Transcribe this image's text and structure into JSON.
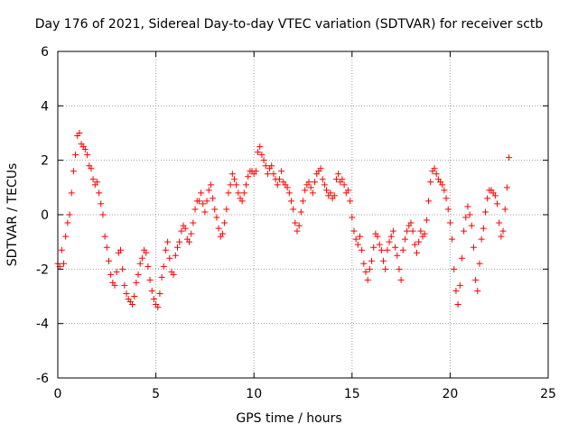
{
  "chart_data": {
    "type": "scatter",
    "title": "Day 176 of 2021, Sidereal Day-to-day VTEC variation (SDTVAR) for receiver sctb",
    "xlabel": "GPS time / hours",
    "ylabel": "SDTVAR / TECUs",
    "xlim": [
      0,
      25
    ],
    "ylim": [
      -6,
      6
    ],
    "x_ticks": [
      0,
      5,
      10,
      15,
      20,
      25
    ],
    "y_ticks": [
      -6,
      -4,
      -2,
      0,
      2,
      4,
      6
    ],
    "grid": true,
    "marker": "+",
    "color": "#ff0000",
    "series": [
      {
        "name": "sctb",
        "x": [
          0.0,
          0.1,
          0.2,
          0.3,
          0.4,
          0.5,
          0.6,
          0.7,
          0.8,
          0.9,
          1.0,
          1.1,
          1.2,
          1.3,
          1.4,
          1.5,
          1.6,
          1.7,
          1.8,
          1.9,
          2.0,
          2.1,
          2.2,
          2.3,
          2.4,
          2.5,
          2.6,
          2.7,
          2.8,
          2.9,
          3.0,
          3.1,
          3.2,
          3.3,
          3.4,
          3.5,
          3.6,
          3.7,
          3.8,
          3.9,
          4.0,
          4.1,
          4.2,
          4.3,
          4.4,
          4.5,
          4.6,
          4.7,
          4.8,
          4.9,
          5.0,
          5.1,
          5.2,
          5.3,
          5.4,
          5.5,
          5.6,
          5.7,
          5.8,
          5.9,
          6.0,
          6.1,
          6.2,
          6.3,
          6.4,
          6.5,
          6.6,
          6.7,
          6.8,
          6.9,
          7.0,
          7.1,
          7.2,
          7.3,
          7.4,
          7.5,
          7.6,
          7.7,
          7.8,
          7.9,
          8.0,
          8.1,
          8.2,
          8.3,
          8.4,
          8.5,
          8.6,
          8.7,
          8.8,
          8.9,
          9.0,
          9.1,
          9.2,
          9.3,
          9.4,
          9.5,
          9.6,
          9.7,
          9.8,
          9.9,
          10.0,
          10.1,
          10.2,
          10.3,
          10.4,
          10.5,
          10.6,
          10.7,
          10.8,
          10.9,
          11.0,
          11.1,
          11.2,
          11.3,
          11.4,
          11.5,
          11.6,
          11.7,
          11.8,
          11.9,
          12.0,
          12.1,
          12.2,
          12.3,
          12.4,
          12.5,
          12.6,
          12.7,
          12.8,
          12.9,
          13.0,
          13.1,
          13.2,
          13.3,
          13.4,
          13.5,
          13.6,
          13.7,
          13.8,
          13.9,
          14.0,
          14.1,
          14.2,
          14.3,
          14.4,
          14.5,
          14.6,
          14.7,
          14.8,
          14.9,
          15.0,
          15.1,
          15.2,
          15.3,
          15.4,
          15.5,
          15.6,
          15.7,
          15.8,
          15.9,
          16.0,
          16.1,
          16.2,
          16.3,
          16.4,
          16.5,
          16.6,
          16.7,
          16.8,
          16.9,
          17.0,
          17.1,
          17.2,
          17.3,
          17.4,
          17.5,
          17.6,
          17.7,
          17.8,
          17.9,
          18.0,
          18.1,
          18.2,
          18.3,
          18.4,
          18.5,
          18.6,
          18.7,
          18.8,
          18.9,
          19.0,
          19.1,
          19.2,
          19.3,
          19.4,
          19.5,
          19.6,
          19.7,
          19.8,
          19.9,
          20.0,
          20.1,
          20.2,
          20.3,
          20.4,
          20.5,
          20.6,
          20.7,
          20.8,
          20.9,
          21.0,
          21.1,
          21.2,
          21.3,
          21.4,
          21.5,
          21.6,
          21.7,
          21.8,
          21.9,
          22.0,
          22.1,
          22.2,
          22.3,
          22.4,
          22.5,
          22.6,
          22.7,
          22.8,
          22.9,
          23.0
        ],
        "y": [
          -1.8,
          -1.9,
          -1.3,
          -1.8,
          -0.8,
          -0.3,
          0.0,
          0.8,
          1.6,
          2.2,
          2.9,
          3.0,
          2.6,
          2.5,
          2.4,
          2.2,
          1.8,
          1.7,
          1.3,
          1.1,
          1.2,
          0.8,
          0.4,
          0.0,
          -0.8,
          -1.2,
          -1.7,
          -2.2,
          -2.5,
          -2.6,
          -2.1,
          -1.4,
          -1.3,
          -2.0,
          -2.6,
          -2.9,
          -3.1,
          -3.2,
          -3.3,
          -3.0,
          -2.5,
          -2.2,
          -1.8,
          -1.6,
          -1.3,
          -1.4,
          -1.9,
          -2.4,
          -2.8,
          -3.1,
          -3.3,
          -3.4,
          -2.9,
          -2.3,
          -1.9,
          -1.3,
          -1.0,
          -1.6,
          -2.1,
          -2.2,
          -1.5,
          -1.2,
          -1.0,
          -0.6,
          -0.4,
          -0.5,
          -0.9,
          -1.0,
          -0.7,
          -0.3,
          0.2,
          0.5,
          0.5,
          0.8,
          0.4,
          0.1,
          0.5,
          0.9,
          1.1,
          0.6,
          0.2,
          -0.1,
          -0.5,
          -0.8,
          -0.7,
          -0.3,
          0.2,
          0.8,
          1.1,
          1.5,
          1.3,
          1.1,
          0.8,
          0.6,
          0.5,
          0.8,
          1.1,
          1.4,
          1.6,
          1.6,
          1.5,
          1.6,
          2.3,
          2.5,
          2.2,
          2.0,
          1.8,
          1.5,
          1.7,
          1.8,
          1.5,
          1.3,
          1.1,
          1.3,
          1.6,
          1.2,
          1.1,
          1.0,
          0.8,
          0.5,
          0.2,
          -0.3,
          -0.6,
          -0.4,
          0.1,
          0.5,
          0.9,
          1.1,
          1.2,
          1.0,
          0.8,
          1.2,
          1.5,
          1.6,
          1.7,
          1.3,
          1.1,
          0.9,
          0.7,
          0.8,
          0.6,
          0.7,
          1.3,
          1.5,
          1.2,
          1.3,
          1.1,
          0.8,
          0.9,
          0.5,
          -0.1,
          -0.6,
          -0.9,
          -1.1,
          -0.8,
          -1.3,
          -1.8,
          -2.1,
          -2.4,
          -2.0,
          -1.7,
          -1.2,
          -0.7,
          -0.8,
          -1.1,
          -1.3,
          -1.7,
          -2.0,
          -1.3,
          -1.0,
          -0.8,
          -0.6,
          -1.2,
          -1.5,
          -2.0,
          -2.4,
          -1.3,
          -0.9,
          -0.6,
          -0.4,
          -0.3,
          -0.6,
          -1.1,
          -1.4,
          -1.0,
          -0.6,
          -0.8,
          -0.7,
          -0.2,
          0.5,
          1.2,
          1.6,
          1.7,
          1.5,
          1.3,
          1.2,
          1.1,
          0.9,
          0.6,
          0.2,
          -0.3,
          -0.9,
          -2.0,
          -2.8,
          -3.3,
          -2.6,
          -1.6,
          -0.6,
          -0.1,
          0.3,
          0.0,
          -0.4,
          -1.2,
          -2.4,
          -2.8,
          -1.8,
          -0.9,
          -0.5,
          0.1,
          0.6,
          0.9,
          0.9,
          0.8,
          0.7,
          0.4,
          -0.3,
          -0.8,
          -0.6,
          0.2,
          1.0,
          2.1
        ]
      }
    ]
  }
}
